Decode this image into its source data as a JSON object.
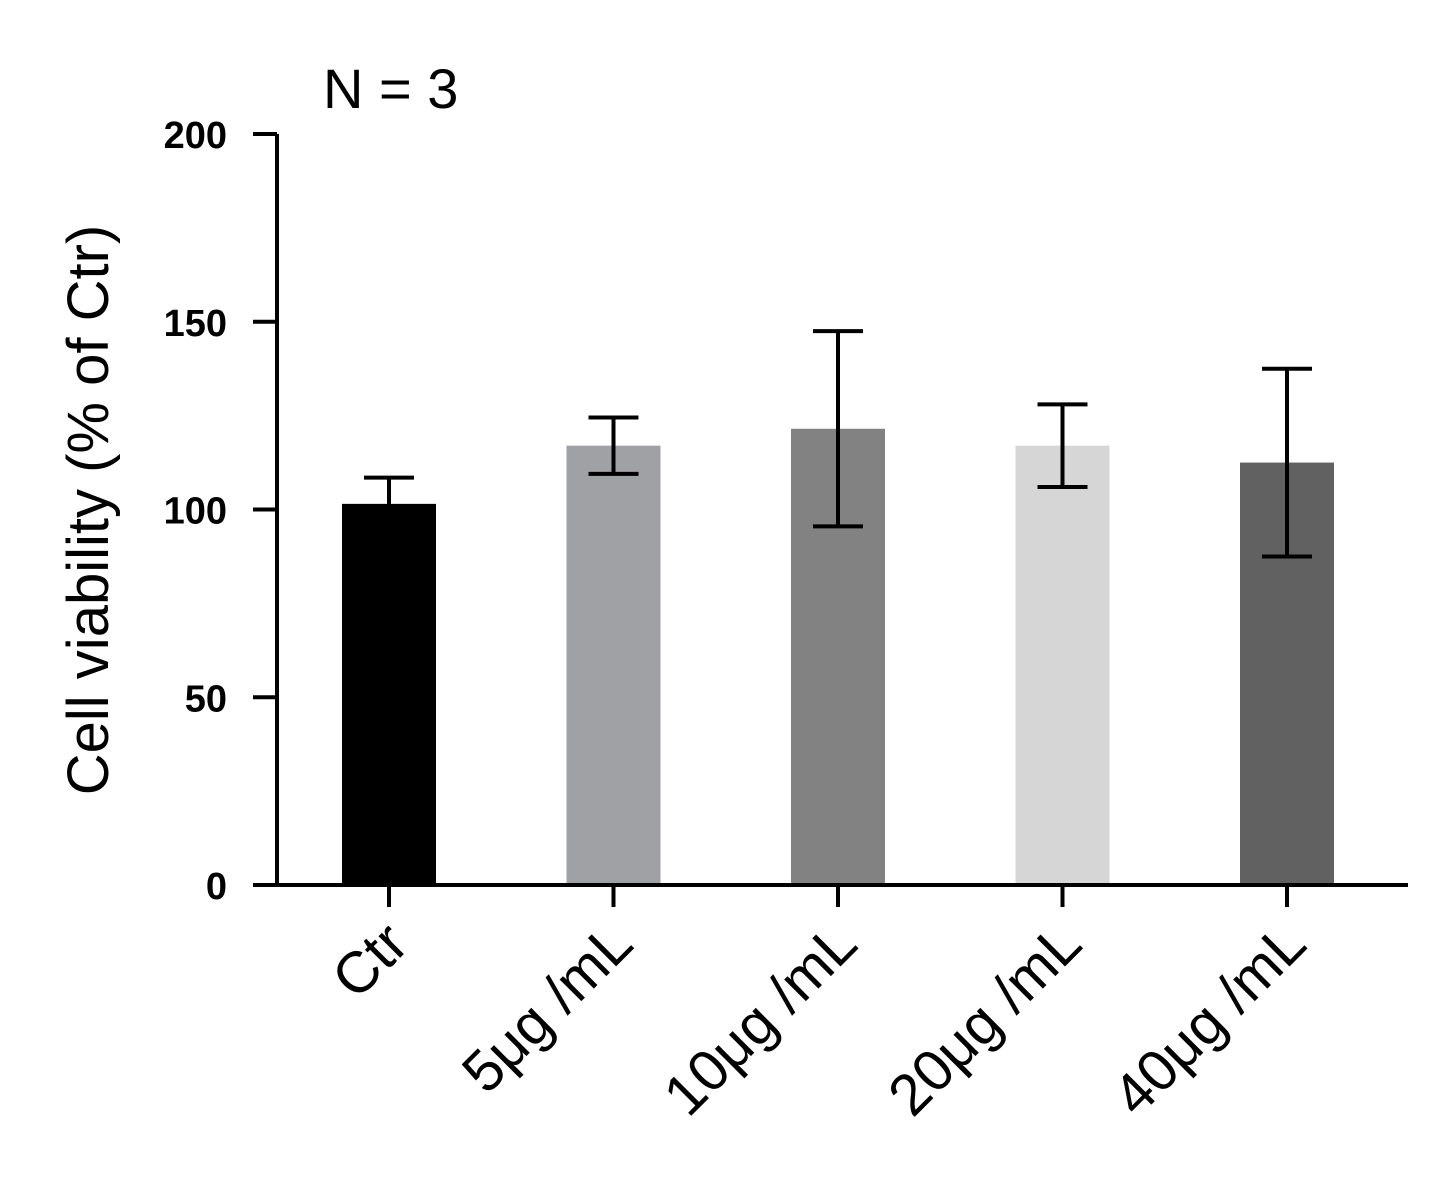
{
  "chart_data": {
    "type": "bar",
    "title": "",
    "annotation": "N = 3",
    "xlabel": "",
    "ylabel": "Cell viability  (%  of Ctr)",
    "ylim": [
      0,
      200
    ],
    "yticks": [
      0,
      50,
      100,
      150,
      200
    ],
    "grid": false,
    "legend": "none",
    "categories": [
      "Ctr",
      "5μg /mL",
      "10μg /mL",
      "20μg /mL",
      "40μg /mL"
    ],
    "values": [
      101.5,
      117.0,
      121.5,
      117.0,
      112.5
    ],
    "errors": [
      7.0,
      7.5,
      26.0,
      11.0,
      25.0
    ],
    "colors": [
      "#000000",
      "#a0a1a5",
      "#828282",
      "#d6d6d6",
      "#616161"
    ]
  }
}
